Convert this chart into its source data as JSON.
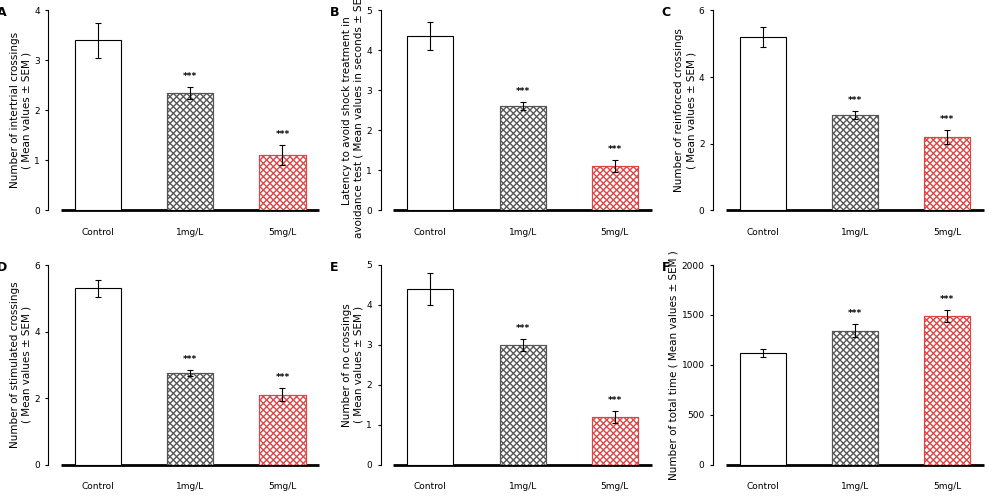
{
  "panels": [
    {
      "label": "A",
      "ylabel": "Number of intertrial crossings\n( Mean values ± SEM )",
      "categories": [
        "Control",
        "1mg/L",
        "5mg/L"
      ],
      "values": [
        3.4,
        2.35,
        1.1
      ],
      "errors": [
        0.35,
        0.12,
        0.2
      ],
      "ylim": [
        0,
        4
      ],
      "yticks": [
        0,
        1,
        2,
        3,
        4
      ],
      "sig": [
        false,
        true,
        true
      ],
      "bar_types": [
        "white",
        "gray_hatch",
        "red_hatch"
      ]
    },
    {
      "label": "B",
      "ylabel": "Latency to avoid shock treatment in\navoidance test ( Mean values in seconds ± SEM )",
      "categories": [
        "Control",
        "1mg/L",
        "5mg/L"
      ],
      "values": [
        4.35,
        2.6,
        1.1
      ],
      "errors": [
        0.35,
        0.1,
        0.15
      ],
      "ylim": [
        0,
        5
      ],
      "yticks": [
        0,
        1,
        2,
        3,
        4,
        5
      ],
      "sig": [
        false,
        true,
        true
      ],
      "bar_types": [
        "white",
        "gray_hatch",
        "red_hatch"
      ]
    },
    {
      "label": "C",
      "ylabel": "Number of reinforced crossings\n( Mean values ± SEM )",
      "categories": [
        "Control",
        "1mg/L",
        "5mg/L"
      ],
      "values": [
        5.2,
        2.85,
        2.2
      ],
      "errors": [
        0.3,
        0.12,
        0.2
      ],
      "ylim": [
        0,
        6
      ],
      "yticks": [
        0,
        2,
        4,
        6
      ],
      "sig": [
        false,
        true,
        true
      ],
      "bar_types": [
        "white",
        "gray_hatch",
        "red_hatch"
      ]
    },
    {
      "label": "D",
      "ylabel": "Number of stimulated crossings\n( Mean values ± SEM )",
      "categories": [
        "Control",
        "1mg/L",
        "5mg/L"
      ],
      "values": [
        5.3,
        2.75,
        2.1
      ],
      "errors": [
        0.25,
        0.1,
        0.2
      ],
      "ylim": [
        0,
        6
      ],
      "yticks": [
        0,
        2,
        4,
        6
      ],
      "sig": [
        false,
        true,
        true
      ],
      "bar_types": [
        "white",
        "gray_hatch",
        "red_hatch"
      ]
    },
    {
      "label": "E",
      "ylabel": "Number of no crossings\n( Mean values ± SEM )",
      "categories": [
        "Control",
        "1mg/L",
        "5mg/L"
      ],
      "values": [
        4.4,
        3.0,
        1.2
      ],
      "errors": [
        0.4,
        0.15,
        0.15
      ],
      "ylim": [
        0,
        5
      ],
      "yticks": [
        0,
        1,
        2,
        3,
        4,
        5
      ],
      "sig": [
        false,
        true,
        true
      ],
      "bar_types": [
        "white",
        "gray_hatch",
        "red_hatch"
      ]
    },
    {
      "label": "F",
      "ylabel": "Number of total time ( Mean values ± SEM )",
      "categories": [
        "Control",
        "1mg/L",
        "5mg/L"
      ],
      "values": [
        1120,
        1340,
        1490
      ],
      "errors": [
        40,
        65,
        60
      ],
      "ylim": [
        0,
        2000
      ],
      "yticks": [
        0,
        500,
        1000,
        1500,
        2000
      ],
      "sig": [
        false,
        true,
        true
      ],
      "bar_types": [
        "white",
        "gray_hatch",
        "red_hatch"
      ]
    }
  ],
  "sig_text": "***",
  "sig_fontsize": 6.5,
  "label_fontsize": 7.5,
  "tick_fontsize": 6.5,
  "bar_width": 0.5,
  "gray_hatch_color": "#555555",
  "red_hatch_color": "#dd4444",
  "ecolor": "black",
  "capsize": 2,
  "linewidth": 0.8
}
